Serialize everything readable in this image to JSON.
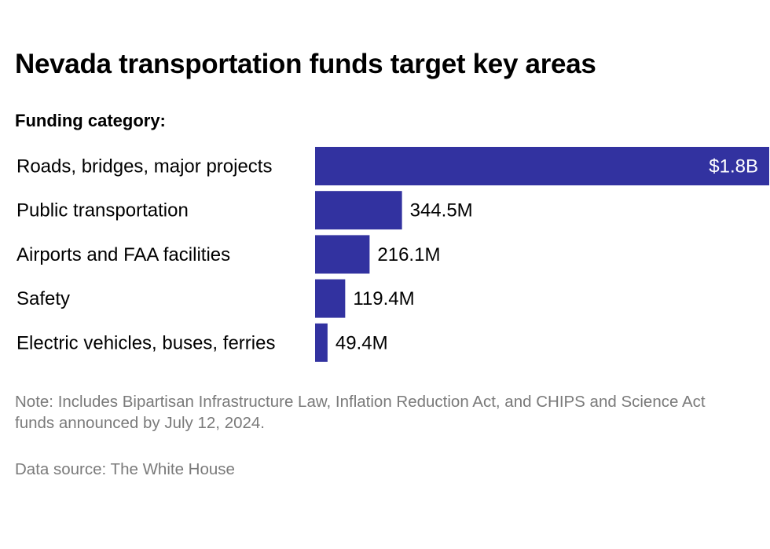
{
  "colors": {
    "bar": "#3232a0",
    "label_inside": "#ffffff",
    "label_outside": "#000000",
    "footnote": "#7a7a7a"
  },
  "header": {
    "title": "Nevada transportation funds target key areas",
    "subtitle": "Funding category:"
  },
  "chart_data": {
    "type": "bar",
    "orientation": "horizontal",
    "title": "Nevada transportation funds target key areas",
    "categories": [
      "Roads, bridges, major projects",
      "Public transportation",
      "Airports and FAA facilities",
      "Safety",
      "Electric vehicles, buses, ferries"
    ],
    "values": [
      1800,
      344.5,
      216.1,
      119.4,
      49.4
    ],
    "value_unit": "millions of USD",
    "value_labels": [
      "$1.8B",
      "344.5M",
      "216.1M",
      "119.4M",
      "49.4M"
    ],
    "xlim": [
      0,
      1800
    ],
    "grid": false,
    "legend": "none"
  },
  "footer": {
    "note": "Note: Includes Bipartisan Infrastructure Law, Inflation Reduction Act, and CHIPS and Science Act funds announced by July 12, 2024.",
    "source": "Data source: The White House"
  }
}
